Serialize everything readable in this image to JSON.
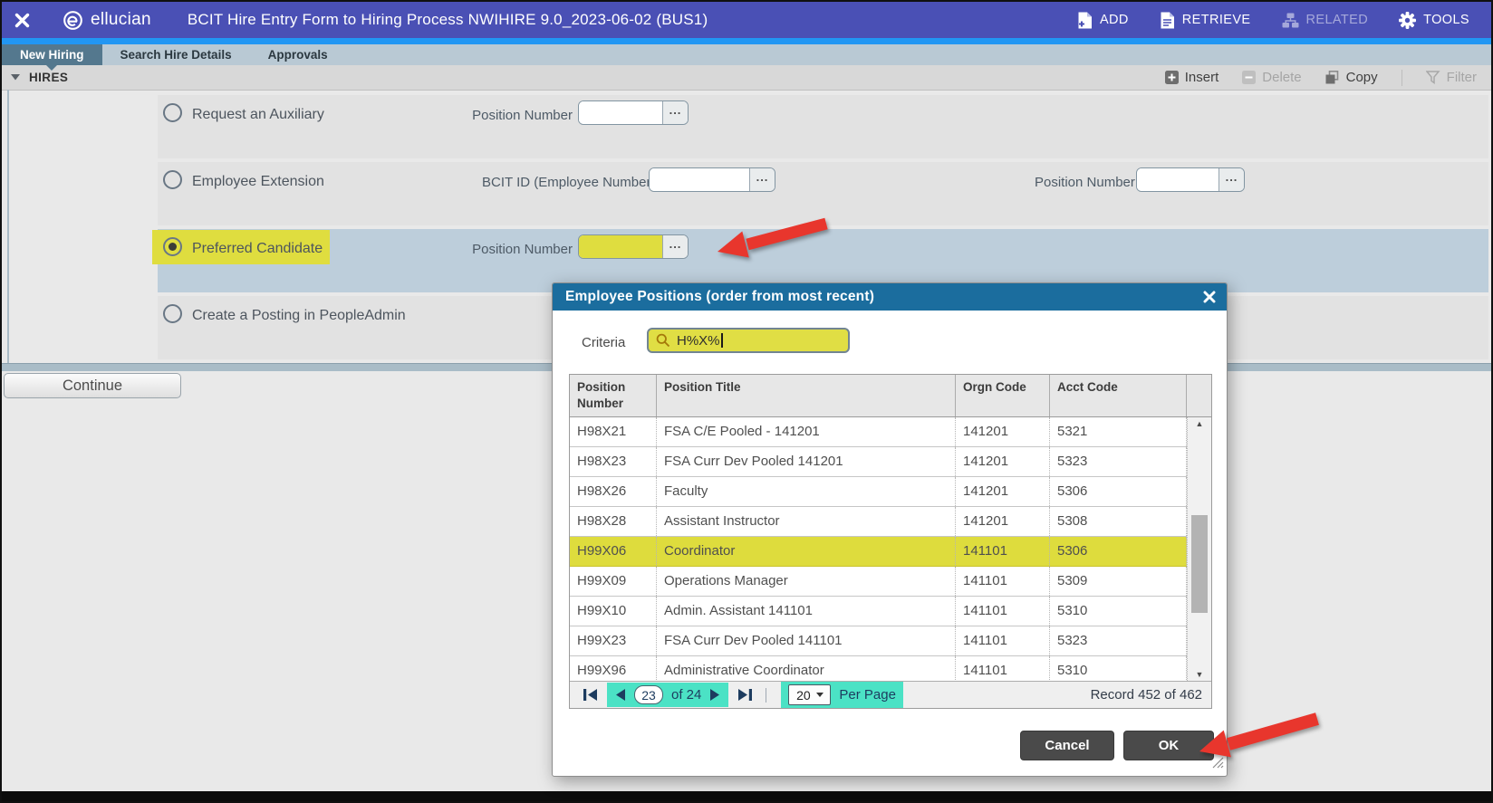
{
  "header": {
    "brand": "ellucian",
    "title": "BCIT Hire Entry Form to Hiring Process NWIHIRE 9.0_2023-06-02 (BUS1)",
    "actions": [
      {
        "label": "ADD",
        "icon": "add-document-icon",
        "disabled": false
      },
      {
        "label": "RETRIEVE",
        "icon": "retrieve-document-icon",
        "disabled": false
      },
      {
        "label": "RELATED",
        "icon": "related-sitemap-icon",
        "disabled": true
      },
      {
        "label": "TOOLS",
        "icon": "tools-gear-icon",
        "disabled": false
      }
    ]
  },
  "tabs": [
    {
      "label": "New Hiring",
      "active": true
    },
    {
      "label": "Search Hire Details",
      "active": false
    },
    {
      "label": "Approvals",
      "active": false
    }
  ],
  "section": {
    "title": "HIRES",
    "toolbar": [
      {
        "label": "Insert",
        "icon": "insert-plus-icon",
        "disabled": false
      },
      {
        "label": "Delete",
        "icon": "delete-minus-icon",
        "disabled": true
      },
      {
        "label": "Copy",
        "icon": "copy-icon",
        "disabled": false
      },
      {
        "label": "Filter",
        "icon": "filter-funnel-icon",
        "disabled": true
      }
    ]
  },
  "options": [
    {
      "label": "Request an Auxiliary",
      "selected": false,
      "fields": [
        {
          "label": "Position Number",
          "value": ""
        }
      ]
    },
    {
      "label": "Employee Extension",
      "selected": false,
      "fields": [
        {
          "label": "BCIT ID (Employee Number)",
          "value": ""
        },
        {
          "label": "Position Number",
          "value": ""
        }
      ]
    },
    {
      "label": "Preferred Candidate",
      "selected": true,
      "highlighted": true,
      "fields": [
        {
          "label": "Position Number",
          "value": "",
          "highlighted": true
        }
      ]
    },
    {
      "label": "Create a Posting in PeopleAdmin",
      "selected": false,
      "fields": []
    }
  ],
  "continue_label": "Continue",
  "modal": {
    "title": "Employee Positions (order from most recent)",
    "criteria": {
      "label": "Criteria",
      "value": "H%X%"
    },
    "table": {
      "columns": [
        "Position Number",
        "Position Title",
        "Orgn Code",
        "Acct Code"
      ],
      "rows": [
        {
          "cells": [
            "H98X21",
            "FSA C/E Pooled - 141201",
            "141201",
            "5321"
          ],
          "highlighted": false
        },
        {
          "cells": [
            "H98X23",
            "FSA Curr Dev Pooled 141201",
            "141201",
            "5323"
          ],
          "highlighted": false
        },
        {
          "cells": [
            "H98X26",
            "Faculty",
            "141201",
            "5306"
          ],
          "highlighted": false
        },
        {
          "cells": [
            "H98X28",
            "Assistant Instructor",
            "141201",
            "5308"
          ],
          "highlighted": false
        },
        {
          "cells": [
            "H99X06",
            "Coordinator",
            "141101",
            "5306"
          ],
          "highlighted": true
        },
        {
          "cells": [
            "H99X09",
            "Operations Manager",
            "141101",
            "5309"
          ],
          "highlighted": false
        },
        {
          "cells": [
            "H99X10",
            "Admin. Assistant 141101",
            "141101",
            "5310"
          ],
          "highlighted": false
        },
        {
          "cells": [
            "H99X23",
            "FSA Curr Dev Pooled 141101",
            "141101",
            "5323"
          ],
          "highlighted": false
        },
        {
          "cells": [
            "H99X96",
            "Administrative Coordinator",
            "141101",
            "5310"
          ],
          "highlighted": false
        }
      ]
    },
    "pagination": {
      "page": "23",
      "of_label": "of 24",
      "per_page_value": "20",
      "per_page_label": "Per Page",
      "record_label": "Record 452 of 462"
    },
    "cancel_label": "Cancel",
    "ok_label": "OK"
  },
  "annotations": {
    "highlight_yellow": "#dfdd3f",
    "highlight_teal": "#4be2c5",
    "arrow_red": "#e8362d",
    "highlighted_items": [
      "Preferred Candidate option",
      "Position Number LOV field",
      "Criteria search box",
      "Row H99X06 Coordinator",
      "Page navigation 23 of 24",
      "20 Per Page selector"
    ]
  },
  "colors": {
    "header_bg": "#4a50b5",
    "accent_strip": "#2196f3",
    "tabbar_bg": "#b9c9d4",
    "active_tab_bg": "#54788e",
    "selected_band_bg": "#bdcedb",
    "band_bg": "#e2e2e2",
    "modal_header_bg": "#1b6d9e",
    "button_dark": "#4a4a4a",
    "pagination_navy": "#1d3c5f"
  },
  "icons": {
    "close": "x-icon",
    "search": "magnifier-icon",
    "lov": "ellipsis-icon",
    "resize": "grip-icon",
    "collapse": "caret-down-icon"
  }
}
